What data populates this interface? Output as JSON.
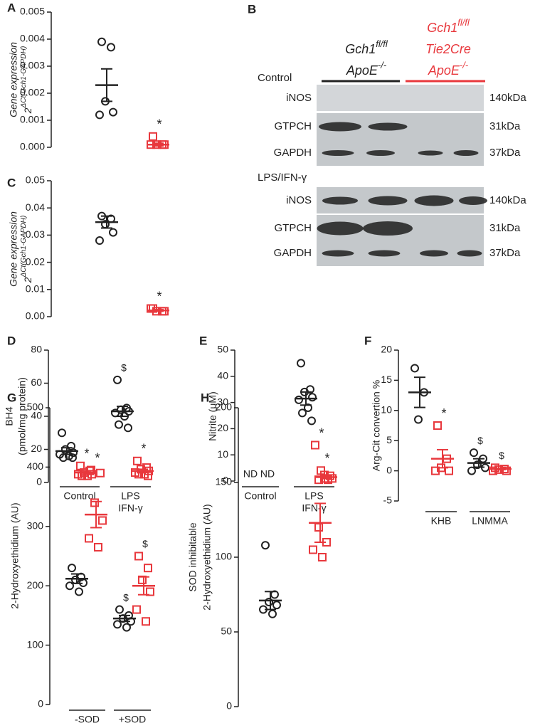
{
  "chart_data": [
    {
      "type": "dot",
      "letter": "A",
      "italic": true,
      "ylabel": [
        "Gene expression",
        {
          "text": "2",
          "sup": "ΔCt(Gch1-GAPDH)"
        }
      ],
      "ylim": [
        0,
        0.005
      ],
      "yticks": [
        {
          "value": 0,
          "label": "0.000"
        },
        {
          "value": 0.001,
          "label": "0.001"
        },
        {
          "value": 0.002,
          "label": "0.002"
        },
        {
          "value": 0.003,
          "label": "0.003"
        },
        {
          "value": 0.004,
          "label": "0.004"
        },
        {
          "value": 0.005,
          "label": "0.005"
        }
      ],
      "groups": [
        {
          "series": [
            {
              "color": "#222222",
              "marker": "circle",
              "values": [
                0.0039,
                0.0037,
                0.0017,
                0.0013,
                0.0012
              ],
              "mean": 0.0023,
              "sem": 0.0006
            },
            {
              "color": "#e8383d",
              "marker": "square",
              "values": [
                0.0004,
                0.0001,
                0.0001,
                0.0001,
                0.0001
              ],
              "mean": 0.0001,
              "sem": 5e-05,
              "annotation": "*"
            }
          ]
        }
      ]
    },
    {
      "type": "dot",
      "letter": "C",
      "italic": true,
      "ylabel": [
        "Gene expression",
        {
          "text": "2",
          "sup": "ΔCt(Gch1-GAPDH)"
        }
      ],
      "ylim": [
        0,
        0.05
      ],
      "yticks": [
        {
          "value": 0,
          "label": "0.00"
        },
        {
          "value": 0.01,
          "label": "0.01"
        },
        {
          "value": 0.02,
          "label": "0.02"
        },
        {
          "value": 0.03,
          "label": "0.03"
        },
        {
          "value": 0.04,
          "label": "0.04"
        },
        {
          "value": 0.05,
          "label": "0.05"
        }
      ],
      "groups": [
        {
          "series": [
            {
              "color": "#222222",
              "marker": "circle",
              "values": [
                0.037,
                0.036,
                0.034,
                0.031,
                0.028
              ],
              "mean": 0.0348,
              "sem": 0.0022
            },
            {
              "color": "#e8383d",
              "marker": "square",
              "values": [
                0.003,
                0.002,
                0.002,
                0.002,
                0.003
              ],
              "mean": 0.0023,
              "sem": 0.0003,
              "annotation": "*"
            }
          ]
        }
      ]
    },
    {
      "type": "dot",
      "letter": "D",
      "ylabel": [
        "BH4",
        "(pmol/mg protein)"
      ],
      "ylim": [
        0,
        80
      ],
      "yticks": [
        0,
        20,
        40,
        60,
        80
      ],
      "groups": [
        {
          "label": "Control",
          "series": [
            {
              "color": "#222222",
              "marker": "circle",
              "values": [
                30,
                22,
                20,
                18,
                17,
                16,
                15,
                15
              ],
              "mean": 19,
              "sem": 2
            },
            {
              "color": "#e8383d",
              "marker": "square",
              "values": [
                10,
                7,
                6,
                5,
                5,
                4,
                4
              ],
              "mean": 6,
              "sem": 1,
              "annotation": "*"
            }
          ]
        },
        {
          "label": [
            "LPS",
            "IFN-γ"
          ],
          "series": [
            {
              "color": "#222222",
              "marker": "circle",
              "values": [
                62,
                45,
                44,
                43,
                42,
                40,
                35,
                33
              ],
              "mean": 43,
              "sem": 3,
              "annotation": "$"
            },
            {
              "color": "#e8383d",
              "marker": "square",
              "values": [
                13,
                9,
                8,
                7,
                6,
                5,
                5,
                4
              ],
              "mean": 7,
              "sem": 1,
              "annotation": "*"
            }
          ]
        }
      ]
    },
    {
      "type": "dot",
      "letter": "E",
      "ylabel": [
        "Nitrite (μM)"
      ],
      "ylim": [
        0,
        50
      ],
      "yticks": [
        0,
        10,
        20,
        30,
        40,
        50
      ],
      "groups": [
        {
          "label": "Control",
          "series": [
            {
              "color": "#222222",
              "note": "ND"
            },
            {
              "color": "#e8383d",
              "note": "ND"
            }
          ]
        },
        {
          "label": [
            "LPS",
            "IFN-γ"
          ],
          "series": [
            {
              "color": "#222222",
              "marker": "circle",
              "values": [
                45,
                35,
                34,
                32,
                31,
                28,
                26,
                23
              ],
              "mean": 31.5,
              "sem": 2.5
            },
            {
              "color": "#e8383d",
              "marker": "square",
              "values": [
                4,
                2,
                1,
                1,
                0.5,
                0.5
              ],
              "mean": 1.5,
              "sem": 0.5,
              "annotation": "*"
            }
          ]
        }
      ]
    },
    {
      "type": "dot",
      "letter": "F",
      "ylabel": [
        "Arg-Cit convertion %"
      ],
      "ylim": [
        -5,
        20
      ],
      "yticks": [
        -5,
        0,
        5,
        10,
        15,
        20
      ],
      "groups": [
        {
          "label": "KHB",
          "series": [
            {
              "color": "#222222",
              "marker": "circle",
              "values": [
                17,
                13,
                8.5
              ],
              "mean": 13,
              "sem": 2.5
            },
            {
              "color": "#e8383d",
              "marker": "square",
              "values": [
                7.5,
                2,
                0.5,
                0,
                0
              ],
              "mean": 2,
              "sem": 1.5,
              "annotation": "*"
            }
          ]
        },
        {
          "label": "LNMMA",
          "series": [
            {
              "color": "#222222",
              "marker": "circle",
              "values": [
                3,
                2,
                1,
                0.5,
                0
              ],
              "mean": 1.3,
              "sem": 0.7,
              "annotation": "$"
            },
            {
              "color": "#e8383d",
              "marker": "square",
              "values": [
                0.5,
                0.3,
                0.2,
                0,
                0
              ],
              "mean": 0.3,
              "sem": 0.1,
              "annotation": "$"
            }
          ]
        }
      ]
    },
    {
      "type": "dot",
      "letter": "G",
      "ylabel": [
        "2-Hydroxyethidium (AU)"
      ],
      "ylim": [
        0,
        500
      ],
      "yticks": [
        0,
        100,
        200,
        300,
        400,
        500
      ],
      "groups": [
        {
          "label": "-SOD",
          "series": [
            {
              "color": "#222222",
              "marker": "circle",
              "values": [
                230,
                215,
                210,
                205,
                200,
                190
              ],
              "mean": 212,
              "sem": 8
            },
            {
              "color": "#e8383d",
              "marker": "square",
              "values": [
                395,
                390,
                340,
                310,
                280,
                265
              ],
              "mean": 320,
              "sem": 22,
              "annotation": "*"
            }
          ]
        },
        {
          "label": "+SOD",
          "series": [
            {
              "color": "#222222",
              "marker": "circle",
              "values": [
                160,
                150,
                145,
                140,
                135,
                130
              ],
              "mean": 145,
              "sem": 5,
              "annotation": "$"
            },
            {
              "color": "#e8383d",
              "marker": "square",
              "values": [
                250,
                230,
                210,
                190,
                160,
                140
              ],
              "mean": 200,
              "sem": 15,
              "annotation": "$"
            }
          ]
        }
      ]
    },
    {
      "type": "dot",
      "letter": "H",
      "ylabel": [
        "SOD inhibitable",
        "2-Hydroxyethidium (AU)"
      ],
      "ylim": [
        0,
        200
      ],
      "yticks": [
        0,
        50,
        100,
        150,
        200
      ],
      "groups": [
        {
          "series": [
            {
              "color": "#222222",
              "marker": "circle",
              "values": [
                108,
                75,
                70,
                68,
                65,
                62
              ],
              "mean": 71,
              "sem": 6
            },
            {
              "color": "#e8383d",
              "marker": "square",
              "values": [
                175,
                155,
                120,
                110,
                105,
                100
              ],
              "mean": 123,
              "sem": 13,
              "annotation": "*"
            }
          ]
        }
      ]
    }
  ],
  "blot": {
    "letter": "B",
    "groups": [
      {
        "color": "#222222",
        "lines": [
          {
            "text": "Gch1",
            "sup": "fl/fl"
          },
          {
            "text": "ApoE",
            "sup": "-/-"
          }
        ]
      },
      {
        "color": "#e8383d",
        "lines": [
          {
            "text": "Gch1",
            "sup": "fl/fl"
          },
          {
            "text": "Tie2Cre"
          },
          {
            "text": "ApoE",
            "sup": "-/-"
          }
        ]
      }
    ],
    "conditions": [
      {
        "label": "Control",
        "rows": [
          {
            "protein": "iNOS",
            "size": "140kDa"
          },
          {
            "protein": "GTPCH",
            "size": "31kDa"
          },
          {
            "protein": "GAPDH",
            "size": "37kDa"
          }
        ]
      },
      {
        "label": "LPS/IFN-γ",
        "rows": [
          {
            "protein": "iNOS",
            "size": "140kDa"
          },
          {
            "protein": "GTPCH",
            "size": "31kDa"
          },
          {
            "protein": "GAPDH",
            "size": "37kDa"
          }
        ]
      }
    ]
  }
}
